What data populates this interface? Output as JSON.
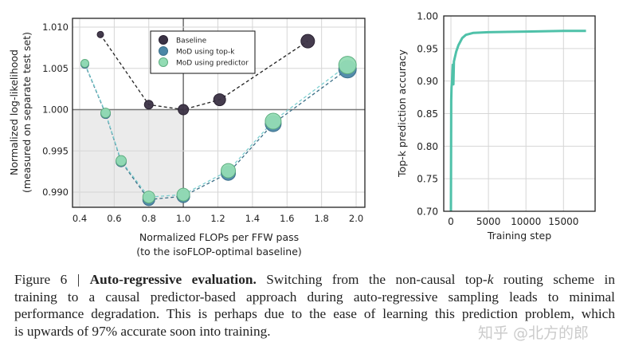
{
  "chart_data": [
    {
      "type": "scatter",
      "title": "",
      "xlabel": [
        "Normalized FLOPs per FFW pass",
        "(to the isoFLOP-optimal baseline)"
      ],
      "ylabel": [
        "Normalized log-likelihood",
        "(measured on separate test set)"
      ],
      "xlim": [
        0.36,
        2.05
      ],
      "ylim": [
        0.9887,
        1.0111
      ],
      "xticks": [
        "0.4",
        "0.6",
        "0.8",
        "1.0",
        "1.2",
        "1.4",
        "1.6",
        "1.8",
        "2.0"
      ],
      "yticks": [
        "1.010",
        "1.005",
        "1.000",
        "0.995",
        "0.990"
      ],
      "grid": true,
      "legend_position": "top-center",
      "shaded_region": {
        "x": [
          0.36,
          1.0
        ],
        "y": [
          0.9887,
          1.0
        ]
      },
      "series": [
        {
          "name": "Baseline",
          "color": "#3b3245",
          "x": [
            0.52,
            0.8,
            1.0,
            1.21,
            1.72
          ],
          "y": [
            1.0091,
            1.0006,
            1.0,
            1.0012,
            1.0083
          ]
        },
        {
          "name": "MoD using top-k",
          "color": "#4b87a6",
          "x": [
            0.43,
            0.55,
            0.64,
            0.8,
            1.0,
            1.26,
            1.52,
            1.95
          ],
          "y": [
            1.0055,
            0.9995,
            0.9937,
            0.9891,
            0.9895,
            0.9923,
            0.9983,
            1.0049
          ]
        },
        {
          "name": "MoD using predictor",
          "color": "#93dcb4",
          "x": [
            0.43,
            0.55,
            0.64,
            0.8,
            1.0,
            1.26,
            1.52,
            1.95
          ],
          "y": [
            1.0056,
            0.9996,
            0.9938,
            0.9894,
            0.9897,
            0.9926,
            0.9986,
            1.0054
          ]
        }
      ]
    },
    {
      "type": "line",
      "title": "",
      "xlabel": "Training step",
      "ylabel": "Top-k prediction accuracy",
      "xlim": [
        -1000,
        19200
      ],
      "ylim": [
        0.7,
        1.0
      ],
      "xticks": [
        "0",
        "5000",
        "10000",
        "15000"
      ],
      "yticks": [
        "1.00",
        "0.95",
        "0.90",
        "0.85",
        "0.80",
        "0.75",
        "0.70"
      ],
      "grid": true,
      "series": [
        {
          "name": "accuracy",
          "color": "#4fc1a9",
          "x": [
            0,
            40,
            80,
            150,
            250,
            330,
            400,
            500,
            700,
            1000,
            1500,
            2000,
            3000,
            5000,
            10000,
            15000,
            18000
          ],
          "y": [
            0.7,
            0.87,
            0.89,
            0.9,
            0.925,
            0.895,
            0.93,
            0.935,
            0.945,
            0.955,
            0.966,
            0.971,
            0.974,
            0.975,
            0.976,
            0.977,
            0.977
          ]
        }
      ]
    }
  ],
  "caption": {
    "label": "Figure 6 |",
    "title": "Auto-regressive evaluation.",
    "line1_a": "Switching from the non-causal top-",
    "line1_k": "k",
    "line1_b": " routing scheme in",
    "line2": "training to a causal predictor-based approach during auto-regressive sampling leads to minimal",
    "line3": "performance degradation. This is perhaps due to the ease of learning this prediction problem, which",
    "line4": "is upwards of 97% accurate soon into training."
  },
  "watermark": "知乎 @北方的郎"
}
